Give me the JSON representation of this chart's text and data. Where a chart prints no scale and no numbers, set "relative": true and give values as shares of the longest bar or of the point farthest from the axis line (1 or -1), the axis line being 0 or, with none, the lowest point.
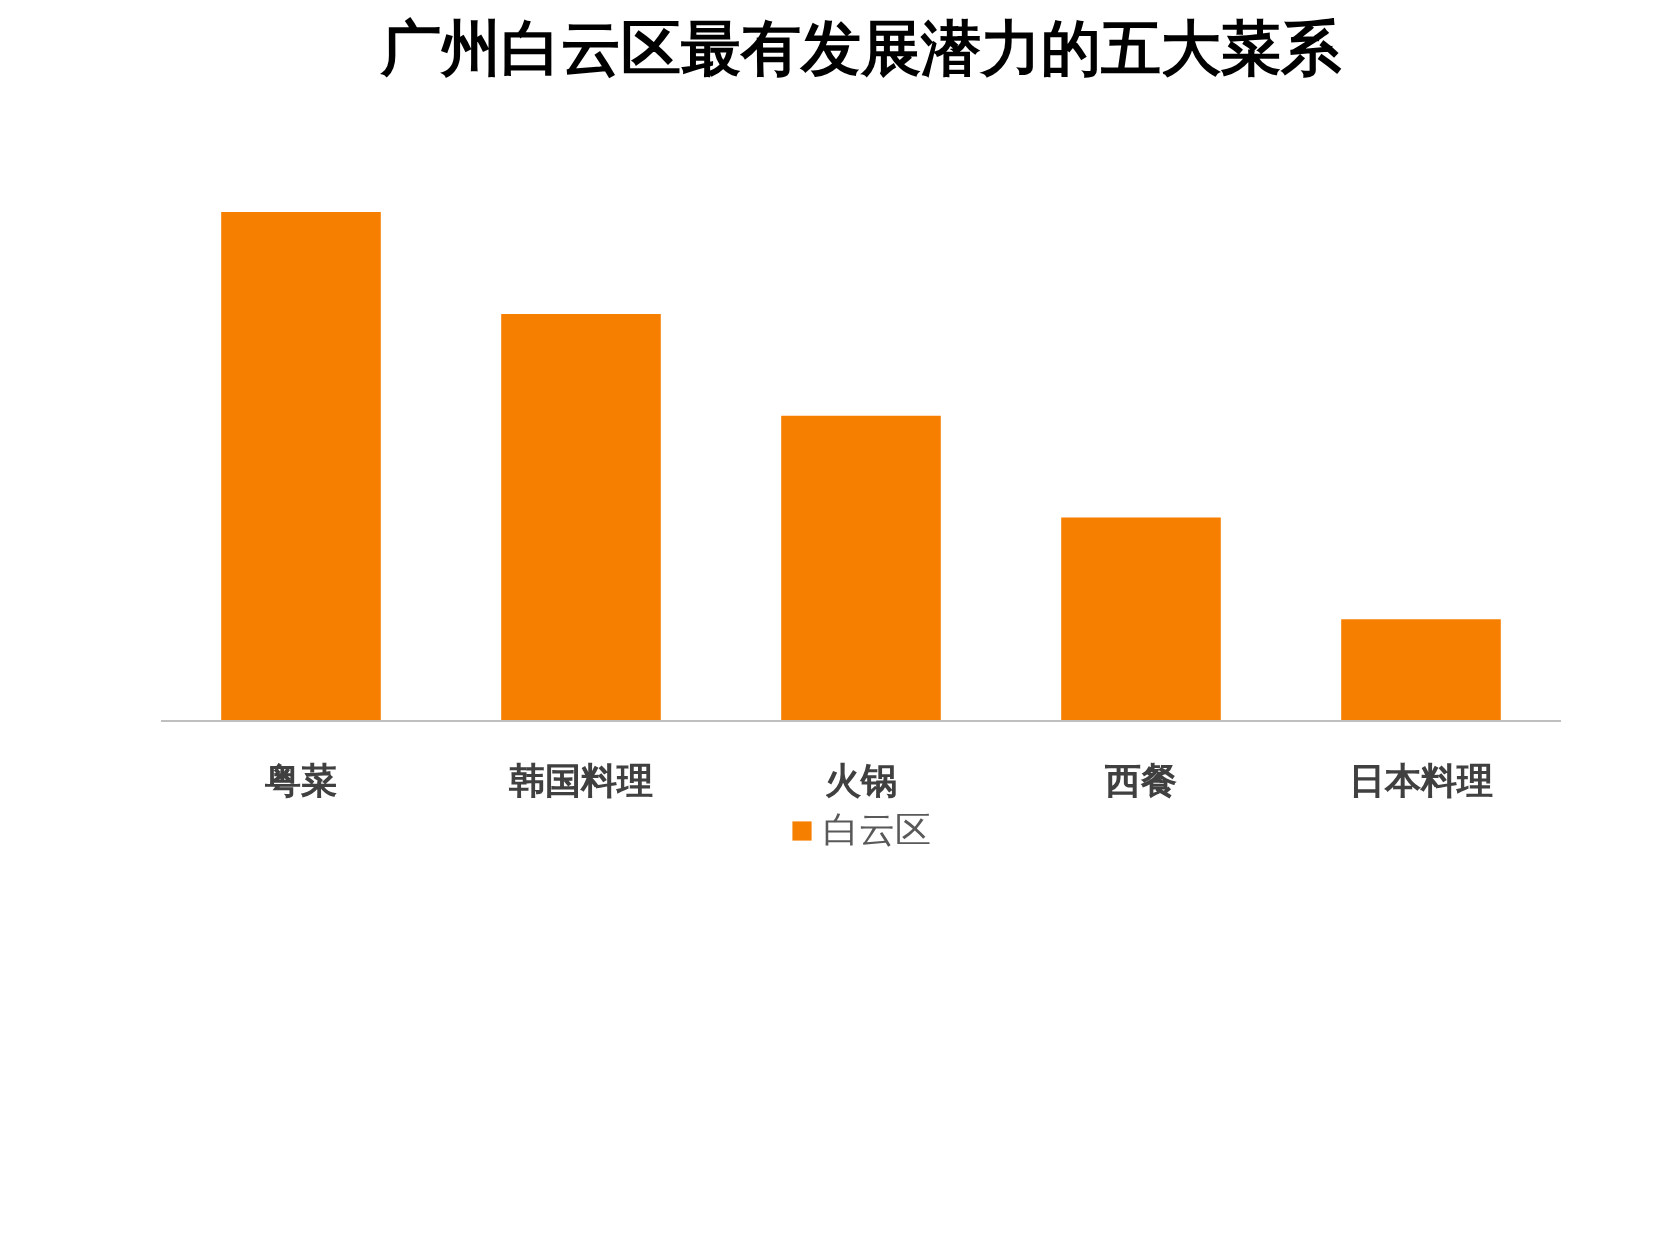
{
  "chart_data": {
    "type": "bar",
    "title": "广州白云区最有发展潜力的五大菜系",
    "categories": [
      "粤菜",
      "韩国料理",
      "火锅",
      "西餐",
      "日本料理"
    ],
    "relative": true,
    "series": [
      {
        "name": "白云区",
        "color": "#f77f00",
        "values": [
          1,
          0.8,
          0.6,
          0.4,
          0.2
        ]
      }
    ],
    "legend": "bottom"
  }
}
